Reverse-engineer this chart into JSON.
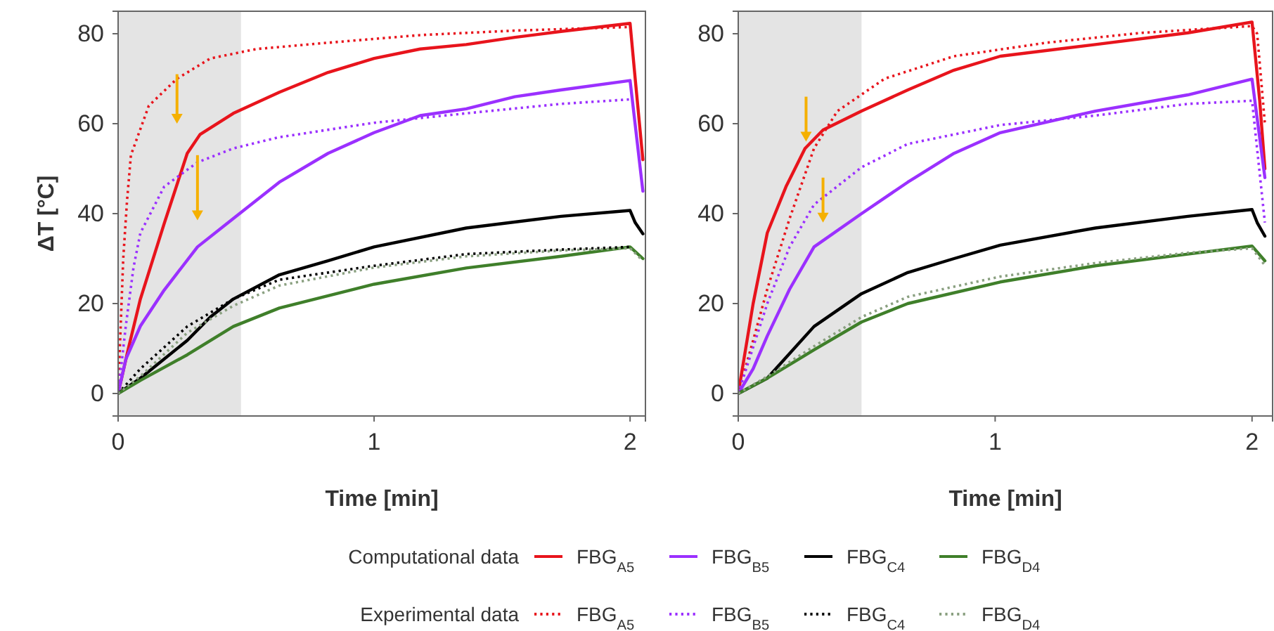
{
  "chart_data": [
    {
      "type": "line",
      "xlabel": "Time [min]",
      "ylabel": "ΔT [°C]",
      "xlim": [
        0,
        2.06
      ],
      "ylim": [
        -5,
        85
      ],
      "xticks": [
        0,
        1,
        2
      ],
      "yticks": [
        0,
        20,
        40,
        60,
        80
      ],
      "grid": false,
      "legend": "bottom",
      "annotations": [
        "Computational data",
        "Experimental data"
      ],
      "bands": [
        {
          "axis": "x",
          "from": 0,
          "to": 0.48,
          "color": "#e4e4e4"
        }
      ],
      "series": [
        {
          "name": "FBG$_{A5}$",
          "color": "#e8141c",
          "line_style": "solid",
          "x": [
            0,
            0.04,
            0.087,
            0.18,
            0.27,
            0.32,
            0.45,
            0.63,
            0.82,
            1.0,
            1.18,
            1.36,
            1.55,
            1.73,
            2.0,
            2.02,
            2.05
          ],
          "values": [
            0,
            10,
            21,
            37.8,
            53.4,
            57.6,
            62.3,
            67,
            71.4,
            74.5,
            76.6,
            77.6,
            79.2,
            80.5,
            82.3,
            70,
            52
          ]
        },
        {
          "name": "FBG$_{B5}$",
          "color": "#9b30ff",
          "line_style": "solid",
          "x": [
            0,
            0.03,
            0.087,
            0.18,
            0.31,
            0.45,
            0.63,
            0.82,
            1.0,
            1.18,
            1.36,
            1.55,
            1.73,
            2.0,
            2.05
          ],
          "values": [
            0,
            7.6,
            15,
            23,
            32.6,
            38.9,
            47,
            53.4,
            58,
            61.8,
            63.3,
            66,
            67.5,
            69.6,
            45
          ]
        },
        {
          "name": "FBG$_{C4}$",
          "color": "#000000",
          "line_style": "solid",
          "x": [
            0,
            0.087,
            0.27,
            0.36,
            0.45,
            0.63,
            0.82,
            1.0,
            1.36,
            1.73,
            2.0,
            2.02,
            2.05
          ],
          "values": [
            0,
            3.4,
            11.8,
            17,
            21,
            26.4,
            29.5,
            32.6,
            36.8,
            39.4,
            40.7,
            38,
            35.5
          ]
        },
        {
          "name": "FBG$_{D4}$",
          "color": "#3f7f2a",
          "line_style": "solid",
          "x": [
            0,
            0.087,
            0.27,
            0.45,
            0.63,
            1.0,
            1.36,
            1.73,
            2.0,
            2.05
          ],
          "values": [
            0,
            2.9,
            8.6,
            14.9,
            19,
            24.3,
            27.9,
            30.5,
            32.6,
            30
          ]
        },
        {
          "name": "FBG$_{A5}$",
          "color": "#e8141c",
          "line_style": "dotted",
          "x": [
            0,
            0.01,
            0.02,
            0.035,
            0.05,
            0.12,
            0.23,
            0.36,
            0.54,
            0.82,
            1.18,
            1.55,
            2.0
          ],
          "values": [
            0,
            15,
            30,
            43,
            53,
            64,
            70,
            74.5,
            76.6,
            78,
            79.7,
            80.7,
            81.5
          ]
        },
        {
          "name": "FBG$_{B5}$",
          "color": "#9b30ff",
          "line_style": "dotted",
          "x": [
            0,
            0.03,
            0.06,
            0.087,
            0.18,
            0.31,
            0.45,
            0.63,
            1.0,
            1.36,
            1.73,
            2.0
          ],
          "values": [
            0,
            15,
            28,
            35.7,
            46,
            51.4,
            54.5,
            57,
            60.2,
            62.3,
            64.4,
            65.4
          ]
        },
        {
          "name": "FBG$_{C4}$",
          "color": "#000000",
          "line_style": "dotted",
          "x": [
            0,
            0.087,
            0.27,
            0.45,
            0.63,
            1.0,
            1.36,
            1.73,
            2.0
          ],
          "values": [
            0,
            5.5,
            14.9,
            21,
            25.3,
            28.4,
            31,
            32,
            32.6
          ]
        },
        {
          "name": "FBG$_{D4}$",
          "color": "#8aa080",
          "line_style": "dotted",
          "x": [
            0,
            0.09,
            0.27,
            0.45,
            0.63,
            1.0,
            1.36,
            1.73,
            2.0,
            2.05
          ],
          "values": [
            0,
            4,
            13.5,
            19.5,
            24,
            28,
            30.5,
            31.8,
            32.3,
            29.5
          ]
        }
      ]
    },
    {
      "type": "line",
      "xlabel": "Time [min]",
      "xlim": [
        0,
        2.08
      ],
      "ylim": [
        -5,
        85
      ],
      "xticks": [
        0,
        1,
        2
      ],
      "yticks": [
        0,
        20,
        40,
        60,
        80
      ],
      "grid": false,
      "legend": false,
      "bands": [
        {
          "axis": "x",
          "from": 0,
          "to": 0.48,
          "color": "#e4e4e4"
        }
      ],
      "series": [
        {
          "color": "#e8141c",
          "line_style": "solid",
          "x": [
            0,
            0.058,
            0.113,
            0.186,
            0.26,
            0.33,
            0.48,
            0.66,
            0.84,
            1.02,
            1.39,
            1.75,
            2.0,
            2.03,
            2.05
          ],
          "values": [
            0,
            20,
            35.7,
            46,
            54.5,
            58.6,
            62.8,
            67.5,
            71.9,
            75,
            77.6,
            80.2,
            82.6,
            65,
            50
          ]
        },
        {
          "color": "#9b30ff",
          "line_style": "solid",
          "x": [
            0,
            0.058,
            0.113,
            0.2,
            0.295,
            0.48,
            0.66,
            0.84,
            1.02,
            1.39,
            1.75,
            2.0,
            2.05
          ],
          "values": [
            0,
            5.5,
            12.8,
            23.2,
            32.6,
            40,
            47,
            53.4,
            58,
            62.8,
            66.4,
            69.9,
            48
          ]
        },
        {
          "color": "#000000",
          "line_style": "solid",
          "x": [
            0,
            0.113,
            0.295,
            0.48,
            0.66,
            0.84,
            1.02,
            1.39,
            1.75,
            2.0,
            2.02,
            2.05
          ],
          "values": [
            0,
            3.4,
            14.9,
            22.2,
            26.9,
            30,
            33,
            36.8,
            39.4,
            40.9,
            38,
            35
          ]
        },
        {
          "color": "#3f7f2a",
          "line_style": "solid",
          "x": [
            0,
            0.113,
            0.295,
            0.48,
            0.66,
            1.02,
            1.39,
            1.75,
            2.0,
            2.05
          ],
          "values": [
            0,
            3.4,
            9.7,
            15.9,
            20,
            24.8,
            28.4,
            31,
            32.8,
            29.5
          ]
        },
        {
          "color": "#e8141c",
          "line_style": "dotted",
          "x": [
            0,
            0.058,
            0.113,
            0.2,
            0.295,
            0.386,
            0.57,
            0.84,
            1.2,
            1.57,
            2.0,
            2.02,
            2.05
          ],
          "values": [
            0,
            11.8,
            23.2,
            38.9,
            54.5,
            62.8,
            70,
            75,
            78,
            80.2,
            81.7,
            80,
            60
          ]
        },
        {
          "color": "#9b30ff",
          "line_style": "dotted",
          "x": [
            0,
            0.113,
            0.2,
            0.295,
            0.48,
            0.66,
            1.02,
            1.39,
            1.75,
            2.0,
            2.05
          ],
          "values": [
            0,
            20,
            32.6,
            42,
            50.3,
            55.5,
            59.7,
            61.8,
            64.4,
            65.1,
            38
          ]
        },
        {
          "color": "#8aa080",
          "line_style": "dotted",
          "x": [
            0,
            0.113,
            0.295,
            0.48,
            0.66,
            1.02,
            1.39,
            1.75,
            2.0,
            2.05
          ],
          "values": [
            0,
            3.8,
            10.5,
            17,
            21.5,
            26,
            29,
            31.3,
            32.3,
            28.5
          ]
        }
      ]
    }
  ]
}
